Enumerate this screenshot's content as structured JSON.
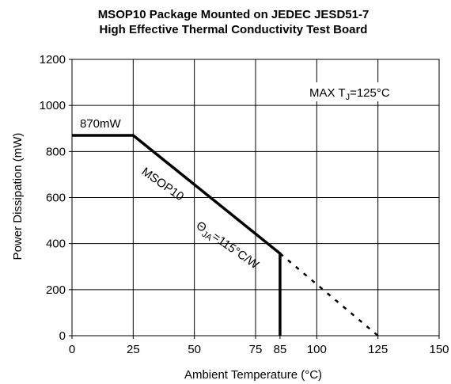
{
  "chart_data": {
    "type": "line",
    "title": "MSOP10 Package Mounted on JEDEC JESD51-7",
    "subtitle": "High Effective Thermal Conductivity Test Board",
    "xlabel": "Ambient Temperature (°C)",
    "ylabel": "Power Dissipation (mW)",
    "xlim": [
      0,
      150
    ],
    "ylim": [
      0,
      1200
    ],
    "xticks": [
      0,
      25,
      50,
      75,
      85,
      100,
      125,
      150
    ],
    "yticks": [
      0,
      200,
      400,
      600,
      800,
      1000,
      1200
    ],
    "grid": true,
    "series": [
      {
        "name": "MSOP10",
        "style": "solid",
        "x": [
          0,
          25,
          85,
          85
        ],
        "y": [
          870,
          870,
          357,
          0
        ]
      },
      {
        "name": "",
        "style": "dashed",
        "x": [
          85,
          125
        ],
        "y": [
          357,
          0
        ]
      }
    ],
    "annotations": {
      "peak": "870mW",
      "series_label": "MSOP10",
      "theta_symbol": "Θ",
      "theta_sub": "JA",
      "theta_value": "=115°C/W",
      "max_prefix": "MAX T",
      "max_sub": "J",
      "max_value": "=125°C"
    }
  }
}
